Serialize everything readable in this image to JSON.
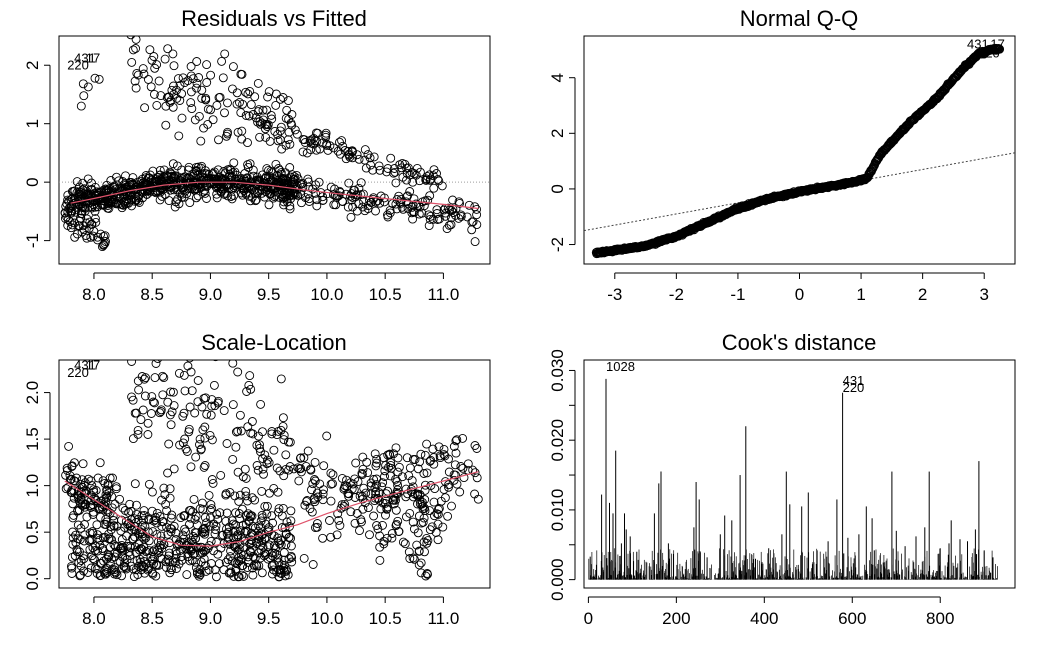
{
  "colors": {
    "smooth": "#df536b",
    "reference": "#9e9e9e",
    "points": "#000000"
  },
  "chart_data": [
    {
      "type": "scatter",
      "title": "Residuals vs Fitted",
      "xlabel": "",
      "ylabel": "",
      "xlim": [
        7.7,
        11.4
      ],
      "ylim": [
        -1.4,
        2.5
      ],
      "xticks": [
        8.0,
        8.5,
        9.0,
        9.5,
        10.0,
        10.5,
        11.0
      ],
      "xtick_labels": [
        "8.0",
        "8.5",
        "9.0",
        "9.5",
        "10.0",
        "10.5",
        "11.0"
      ],
      "yticks": [
        -1,
        0,
        1,
        2
      ],
      "ytick_labels": [
        "-1",
        "0",
        "1",
        "2"
      ],
      "reference_line_y": 0,
      "smooth": {
        "x": [
          7.8,
          8.0,
          8.3,
          8.6,
          8.9,
          9.2,
          9.5,
          9.8,
          10.1,
          10.4,
          10.7,
          11.0,
          11.3
        ],
        "y": [
          -0.36,
          -0.28,
          -0.15,
          -0.05,
          0.0,
          0.0,
          -0.05,
          -0.13,
          -0.2,
          -0.26,
          -0.32,
          -0.38,
          -0.45
        ]
      },
      "point_bands": [
        {
          "n": 700,
          "x_from": 7.75,
          "x_to": 9.75,
          "mode": "smooth",
          "jitter": 0.13
        },
        {
          "n": 140,
          "x_from": 8.3,
          "x_to": 9.7,
          "mode": "linear",
          "y_from": 1.85,
          "y_to": 1.0,
          "jitter": 0.4
        },
        {
          "n": 110,
          "x_from": 9.4,
          "x_to": 11.0,
          "mode": "linear",
          "y_from": 1.0,
          "y_to": 0.0,
          "jitter": 0.1
        },
        {
          "n": 170,
          "x_from": 9.6,
          "x_to": 11.3,
          "mode": "linear",
          "y_from": -0.1,
          "y_to": -0.6,
          "jitter": 0.14
        },
        {
          "n": 40,
          "x_from": 7.75,
          "x_to": 8.1,
          "mode": "linear",
          "y_from": -0.6,
          "y_to": -0.95,
          "jitter": 0.1
        },
        {
          "n": 6,
          "x_from": 7.85,
          "x_to": 8.1,
          "mode": "linear",
          "y_from": 1.45,
          "y_to": 1.8,
          "jitter": 0.1
        }
      ],
      "point_labels": [
        {
          "text": "431",
          "x": 7.83,
          "y": 2.05
        },
        {
          "text": "17",
          "x": 7.93,
          "y": 2.05
        },
        {
          "text": "220",
          "x": 7.77,
          "y": 1.93
        }
      ]
    },
    {
      "type": "scatter",
      "title": "Normal Q-Q",
      "xlabel": "",
      "ylabel": "",
      "xlim": [
        -3.5,
        3.5
      ],
      "ylim": [
        -2.7,
        5.5
      ],
      "xticks": [
        -3,
        -2,
        -1,
        0,
        1,
        2,
        3
      ],
      "xtick_labels": [
        "-3",
        "-2",
        "-1",
        "0",
        "1",
        "2",
        "3"
      ],
      "yticks": [
        -2,
        0,
        2,
        4
      ],
      "ytick_labels": [
        "-2",
        "0",
        "2",
        "4"
      ],
      "reference_line": {
        "slope": 0.4,
        "intercept": -0.1
      },
      "quantile_curve": {
        "n": 930,
        "x_from": -3.3,
        "x_to": 3.25,
        "x": [
          -3.3,
          -2.5,
          -2.0,
          -1.5,
          -1.0,
          -0.5,
          0.0,
          0.5,
          0.9,
          1.1,
          1.3,
          1.5,
          1.8,
          2.2,
          2.6,
          2.9,
          3.1,
          3.25
        ],
        "y": [
          -2.3,
          -2.05,
          -1.7,
          -1.2,
          -0.7,
          -0.35,
          -0.1,
          0.1,
          0.25,
          0.4,
          1.2,
          1.7,
          2.4,
          3.2,
          4.2,
          4.85,
          5.0,
          5.05
        ]
      },
      "point_labels": [
        {
          "text": "431",
          "x": 2.72,
          "y": 5.05
        },
        {
          "text": "17",
          "x": 3.1,
          "y": 5.05
        },
        {
          "text": "220",
          "x": 2.9,
          "y": 4.72
        }
      ]
    },
    {
      "type": "scatter",
      "title": "Scale-Location",
      "xlabel": "",
      "ylabel": "",
      "xlim": [
        7.7,
        11.4
      ],
      "ylim": [
        -0.1,
        2.35
      ],
      "xticks": [
        8.0,
        8.5,
        9.0,
        9.5,
        10.0,
        10.5,
        11.0
      ],
      "xtick_labels": [
        "8.0",
        "8.5",
        "9.0",
        "9.5",
        "10.0",
        "10.5",
        "11.0"
      ],
      "yticks": [
        0.0,
        0.5,
        1.0,
        1.5,
        2.0
      ],
      "ytick_labels": [
        "0.0",
        "0.5",
        "1.0",
        "1.5",
        "2.0"
      ],
      "smooth": {
        "x": [
          7.75,
          8.0,
          8.25,
          8.5,
          8.75,
          9.0,
          9.25,
          9.5,
          9.75,
          10.0,
          10.3,
          10.6,
          11.0,
          11.3
        ],
        "y": [
          1.05,
          0.85,
          0.65,
          0.45,
          0.36,
          0.35,
          0.4,
          0.5,
          0.58,
          0.7,
          0.82,
          0.92,
          1.05,
          1.15
        ]
      },
      "point_bands": [
        {
          "n": 620,
          "x_from": 7.8,
          "x_to": 9.7,
          "mode": "abs",
          "y_from": 0.35,
          "y_to": 0.35,
          "jitter": 0.3
        },
        {
          "n": 80,
          "x_from": 7.75,
          "x_to": 8.2,
          "mode": "linear",
          "y_from": 1.1,
          "y_to": 0.8,
          "jitter": 0.15
        },
        {
          "n": 130,
          "x_from": 8.3,
          "x_to": 9.7,
          "mode": "linear",
          "y_from": 2.0,
          "y_to": 1.3,
          "jitter": 0.35
        },
        {
          "n": 110,
          "x_from": 9.4,
          "x_to": 11.0,
          "mode": "linear",
          "y_from": 1.3,
          "y_to": 0.6,
          "jitter": 0.15
        },
        {
          "n": 130,
          "x_from": 9.8,
          "x_to": 11.3,
          "mode": "linear",
          "y_from": 0.7,
          "y_to": 1.1,
          "jitter": 0.2
        },
        {
          "n": 40,
          "x_from": 10.3,
          "x_to": 11.3,
          "mode": "linear",
          "y_from": 1.2,
          "y_to": 1.45,
          "jitter": 0.08
        },
        {
          "n": 30,
          "x_from": 10.4,
          "x_to": 10.9,
          "mode": "linear",
          "y_from": 0.5,
          "y_to": 0.1,
          "jitter": 0.15
        }
      ],
      "point_labels": [
        {
          "text": "431",
          "x": 7.83,
          "y": 2.25
        },
        {
          "text": "17",
          "x": 7.93,
          "y": 2.25
        },
        {
          "text": "220",
          "x": 7.77,
          "y": 2.17
        }
      ]
    },
    {
      "type": "bar",
      "title": "Cook's distance",
      "xlabel": "",
      "ylabel": "",
      "xlim": [
        -10,
        970
      ],
      "ylim": [
        -0.0012,
        0.0315
      ],
      "xticks": [
        0,
        200,
        400,
        600,
        800
      ],
      "xtick_labels": [
        "0",
        "200",
        "400",
        "600",
        "800"
      ],
      "yticks": [
        0.0,
        0.005,
        0.01,
        0.015,
        0.02,
        0.025,
        0.03
      ],
      "ytick_labels": [
        "0.000",
        "",
        "0.010",
        "",
        "0.020",
        "",
        "0.030"
      ],
      "n_obs": 930,
      "spikes": [
        {
          "x": 4,
          "y": 0.0033
        },
        {
          "x": 30,
          "y": 0.0122
        },
        {
          "x": 40,
          "y": 0.0288
        },
        {
          "x": 48,
          "y": 0.011
        },
        {
          "x": 56,
          "y": 0.0095
        },
        {
          "x": 62,
          "y": 0.0185
        },
        {
          "x": 75,
          "y": 0.0052
        },
        {
          "x": 82,
          "y": 0.0095
        },
        {
          "x": 86,
          "y": 0.0072
        },
        {
          "x": 95,
          "y": 0.0062
        },
        {
          "x": 110,
          "y": 0.004
        },
        {
          "x": 150,
          "y": 0.0095
        },
        {
          "x": 160,
          "y": 0.0138
        },
        {
          "x": 165,
          "y": 0.0155
        },
        {
          "x": 182,
          "y": 0.0052
        },
        {
          "x": 240,
          "y": 0.0075
        },
        {
          "x": 245,
          "y": 0.014
        },
        {
          "x": 252,
          "y": 0.0115
        },
        {
          "x": 270,
          "y": 0.0032
        },
        {
          "x": 300,
          "y": 0.0065
        },
        {
          "x": 310,
          "y": 0.0092
        },
        {
          "x": 326,
          "y": 0.0085
        },
        {
          "x": 345,
          "y": 0.015
        },
        {
          "x": 358,
          "y": 0.022
        },
        {
          "x": 380,
          "y": 0.003
        },
        {
          "x": 410,
          "y": 0.0045
        },
        {
          "x": 440,
          "y": 0.0065
        },
        {
          "x": 450,
          "y": 0.0155
        },
        {
          "x": 458,
          "y": 0.0108
        },
        {
          "x": 485,
          "y": 0.0105
        },
        {
          "x": 500,
          "y": 0.0125
        },
        {
          "x": 520,
          "y": 0.0042
        },
        {
          "x": 545,
          "y": 0.0055
        },
        {
          "x": 565,
          "y": 0.0115
        },
        {
          "x": 578,
          "y": 0.0268
        },
        {
          "x": 590,
          "y": 0.006
        },
        {
          "x": 615,
          "y": 0.0065
        },
        {
          "x": 632,
          "y": 0.0105
        },
        {
          "x": 645,
          "y": 0.0088
        },
        {
          "x": 650,
          "y": 0.0042
        },
        {
          "x": 690,
          "y": 0.0155
        },
        {
          "x": 700,
          "y": 0.007
        },
        {
          "x": 720,
          "y": 0.0048
        },
        {
          "x": 745,
          "y": 0.0062
        },
        {
          "x": 765,
          "y": 0.0075
        },
        {
          "x": 775,
          "y": 0.0155
        },
        {
          "x": 800,
          "y": 0.0045
        },
        {
          "x": 820,
          "y": 0.0052
        },
        {
          "x": 825,
          "y": 0.0085
        },
        {
          "x": 845,
          "y": 0.0058
        },
        {
          "x": 862,
          "y": 0.0055
        },
        {
          "x": 880,
          "y": 0.0072
        },
        {
          "x": 888,
          "y": 0.017
        },
        {
          "x": 900,
          "y": 0.0042
        },
        {
          "x": 920,
          "y": 0.0032
        }
      ],
      "point_labels": [
        {
          "text": "1028",
          "x": 40,
          "y": 0.0299
        },
        {
          "text": "431",
          "x": 578,
          "y": 0.0279
        },
        {
          "text": "220",
          "x": 578,
          "y": 0.0269
        }
      ]
    }
  ]
}
